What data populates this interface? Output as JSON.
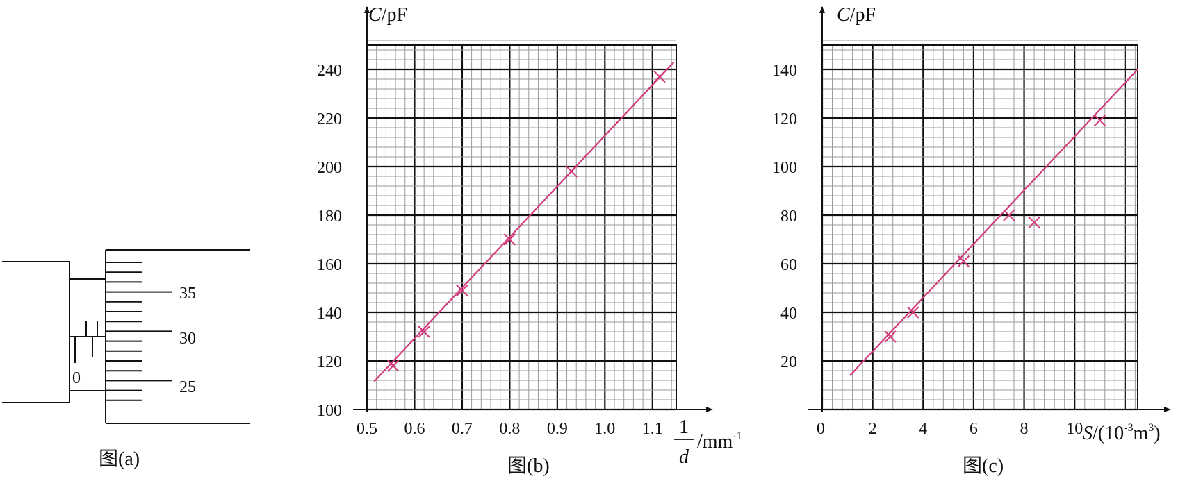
{
  "figure_a": {
    "caption": "图(a)",
    "main_scale_zero": "0",
    "thimble_labels": [
      "35",
      "30",
      "25"
    ]
  },
  "chart_data": [
    {
      "type": "scatter",
      "caption": "图(b)",
      "ylabel_var": "C",
      "ylabel_unit": "/pF",
      "xlabel_num": "1",
      "xlabel_den": "d",
      "xlabel_unit": "/mm",
      "xlabel_exp": "-1",
      "xlim": [
        0.5,
        1.15
      ],
      "ylim": [
        100,
        250
      ],
      "x_major": 0.1,
      "x_minor": 0.02,
      "y_major": 20,
      "y_minor": 4,
      "x_ticks": [
        "0.5",
        "0.6",
        "0.7",
        "0.8",
        "0.9",
        "1.0",
        "1.1"
      ],
      "y_ticks": [
        "100",
        "120",
        "140",
        "160",
        "180",
        "200",
        "220",
        "240"
      ],
      "points": [
        [
          0.555,
          118
        ],
        [
          0.62,
          132
        ],
        [
          0.7,
          149
        ],
        [
          0.8,
          170
        ],
        [
          0.93,
          198
        ],
        [
          1.115,
          237
        ]
      ],
      "fit_line": [
        [
          0.515,
          111.5
        ],
        [
          1.145,
          243
        ]
      ],
      "color": "#d23a7c"
    },
    {
      "type": "scatter",
      "caption": "图(c)",
      "ylabel_var": "C",
      "ylabel_unit": "/pF",
      "xlabel_var": "S",
      "xlabel_unit_pre": "/(10",
      "xlabel_exp": "-3",
      "xlabel_unit_mid": "m",
      "xlabel_exp2": "3",
      "xlabel_unit_post": ")",
      "xlim": [
        0,
        12.5
      ],
      "ylim": [
        0,
        150
      ],
      "x_major": 2,
      "x_minor": 0.4,
      "y_major": 20,
      "y_minor": 4,
      "x_ticks": [
        "0",
        "2",
        "4",
        "6",
        "8",
        "10"
      ],
      "y_ticks": [
        "20",
        "40",
        "60",
        "80",
        "100",
        "120",
        "140"
      ],
      "points": [
        [
          2.7,
          30
        ],
        [
          3.6,
          40
        ],
        [
          5.6,
          61
        ],
        [
          7.4,
          80
        ],
        [
          8.4,
          77
        ],
        [
          11,
          119
        ]
      ],
      "fit_line": [
        [
          1.1,
          14
        ],
        [
          12.5,
          140
        ]
      ],
      "color": "#d23a7c"
    }
  ]
}
